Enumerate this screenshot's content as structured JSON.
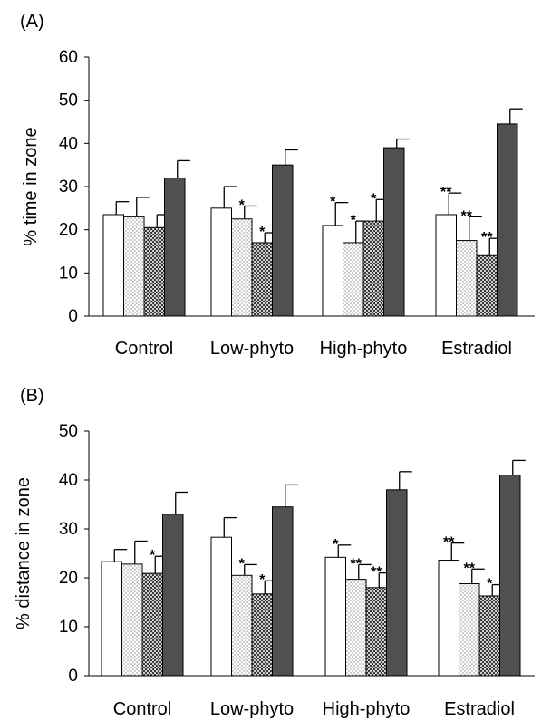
{
  "chart_data": [
    {
      "type": "bar",
      "panel_label": "(A)",
      "title": "",
      "xlabel": "",
      "ylabel": "% time in zone",
      "ylim": [
        0,
        60
      ],
      "yticks": [
        0,
        10,
        20,
        30,
        40,
        50,
        60
      ],
      "grid": false,
      "legend": "none",
      "categories": [
        "Control",
        "Low-phyto",
        "High-phyto",
        "Estradiol"
      ],
      "series": [
        {
          "fill": "white",
          "values": [
            23.5,
            25.0,
            21.0,
            23.5
          ],
          "errors": [
            3.0,
            5.0,
            5.3,
            5.0
          ],
          "significance": [
            "",
            "",
            "*",
            "**"
          ]
        },
        {
          "fill": "dotted",
          "values": [
            23.0,
            22.5,
            17.0,
            17.5
          ],
          "errors": [
            4.5,
            3.0,
            5.0,
            5.5
          ],
          "significance": [
            "",
            "*",
            "*",
            "**"
          ]
        },
        {
          "fill": "hatched",
          "values": [
            20.5,
            17.0,
            22.0,
            14.0
          ],
          "errors": [
            3.0,
            2.3,
            5.0,
            4.0
          ],
          "significance": [
            "",
            "*",
            "*",
            "**"
          ]
        },
        {
          "fill": "dark",
          "values": [
            32.0,
            35.0,
            39.0,
            44.5
          ],
          "errors": [
            4.0,
            3.5,
            2.0,
            3.5
          ],
          "significance": [
            "",
            "",
            "",
            ""
          ]
        }
      ]
    },
    {
      "type": "bar",
      "panel_label": "(B)",
      "title": "",
      "xlabel": "",
      "ylabel": "% distance in zone",
      "ylim": [
        0,
        50
      ],
      "yticks": [
        0,
        10,
        20,
        30,
        40,
        50
      ],
      "grid": false,
      "legend": "none",
      "categories": [
        "Control",
        "Low-phyto",
        "High-phyto",
        "Estradiol"
      ],
      "series": [
        {
          "fill": "white",
          "values": [
            23.3,
            28.3,
            24.2,
            23.6
          ],
          "errors": [
            2.5,
            4.0,
            2.5,
            3.5
          ],
          "significance": [
            "",
            "",
            "*",
            "**"
          ]
        },
        {
          "fill": "dotted",
          "values": [
            22.8,
            20.5,
            19.7,
            18.8
          ],
          "errors": [
            4.7,
            2.2,
            3.0,
            3.0
          ],
          "significance": [
            "",
            "*",
            "**",
            "**"
          ]
        },
        {
          "fill": "hatched",
          "values": [
            20.9,
            16.7,
            18.0,
            16.3
          ],
          "errors": [
            3.5,
            2.7,
            3.0,
            2.3
          ],
          "significance": [
            "*",
            "*",
            "**",
            "*"
          ]
        },
        {
          "fill": "dark",
          "values": [
            33.0,
            34.5,
            38.0,
            41.0
          ],
          "errors": [
            4.5,
            4.5,
            3.7,
            3.0
          ],
          "significance": [
            "",
            "",
            "",
            ""
          ]
        }
      ]
    }
  ]
}
